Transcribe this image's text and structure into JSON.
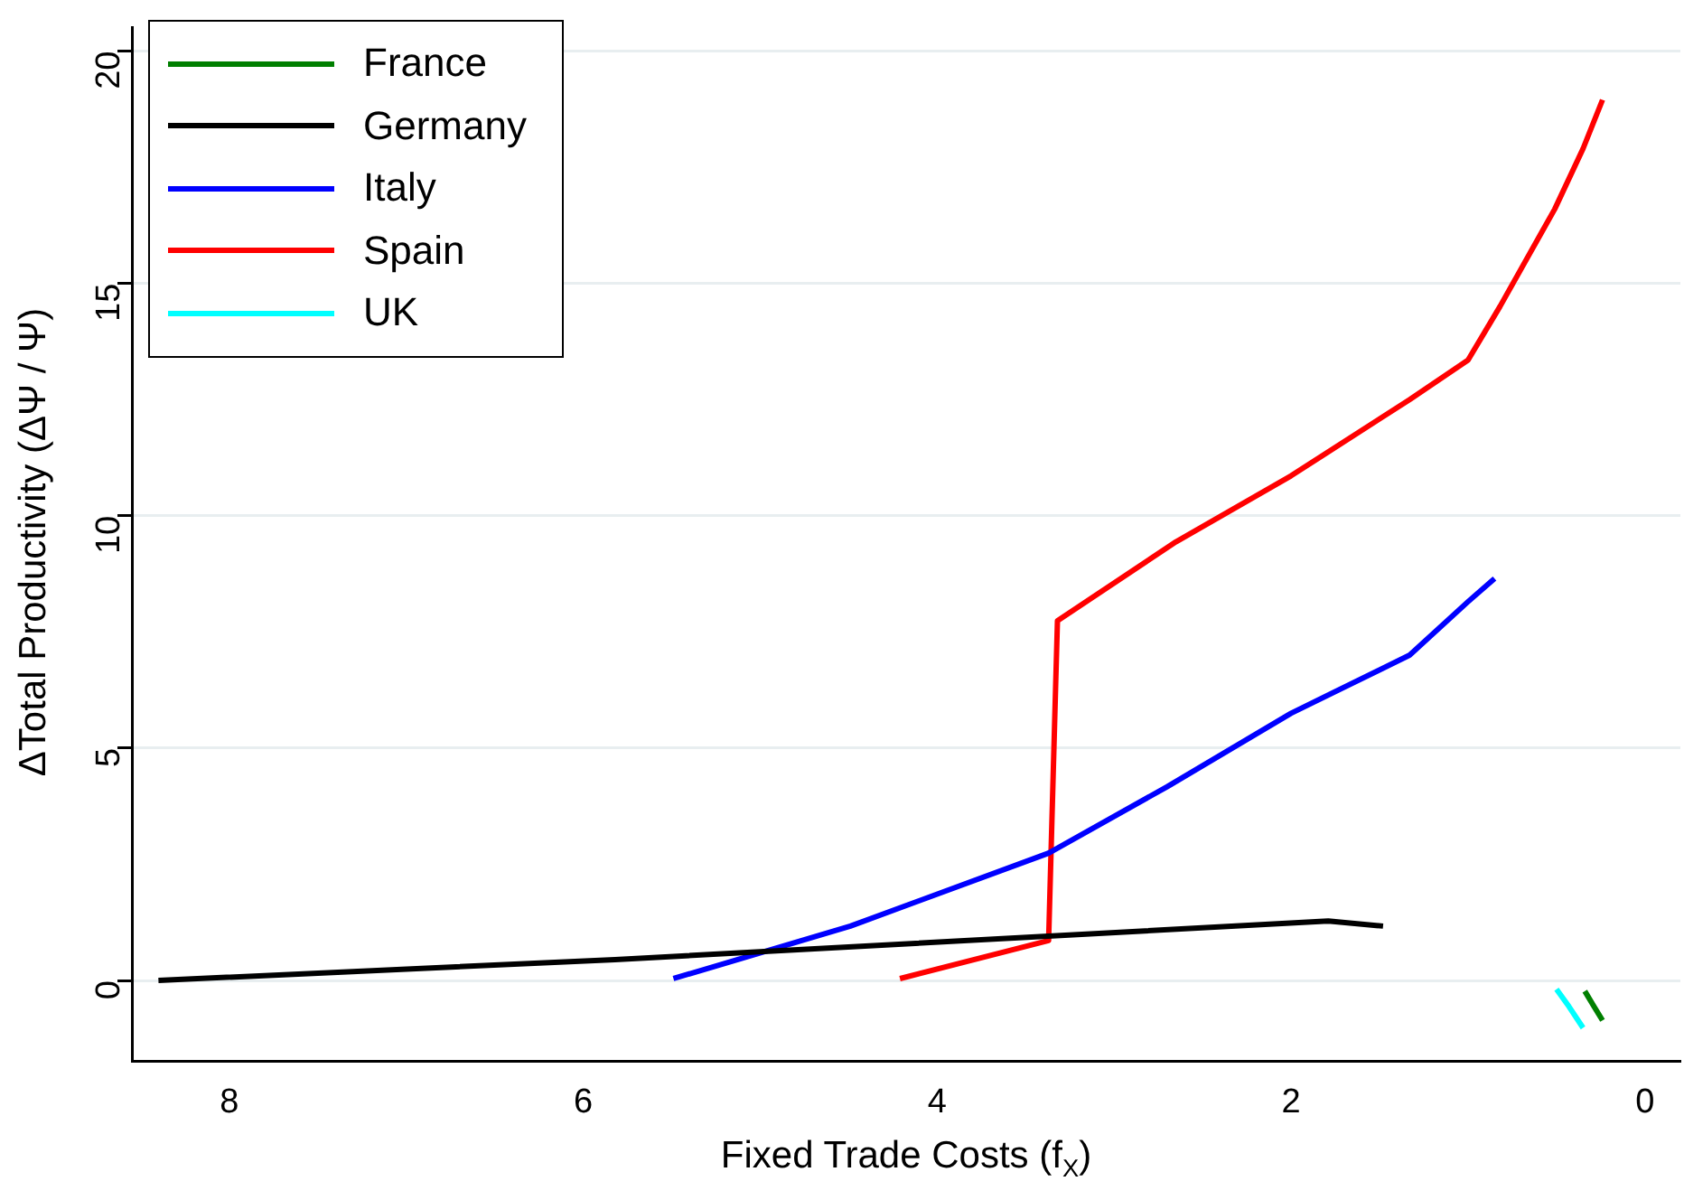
{
  "chart_data": {
    "type": "line",
    "xlabel": "Fixed Trade Costs (f$_{X}$)",
    "ylabel": "ΔTotal Productivity (ΔΨ / Ψ)",
    "xlim": [
      8.55,
      -0.2
    ],
    "xticks": [
      8,
      6,
      4,
      2,
      0
    ],
    "ylim": [
      -1.73,
      20.5
    ],
    "yticks": [
      0,
      5,
      10,
      15,
      20
    ],
    "grid": "y",
    "legend": "top left",
    "line_style": "solid",
    "marker": "none",
    "series": [
      {
        "name": "France",
        "color": "#007f00",
        "x": [
          0.34,
          0.29,
          0.24
        ],
        "values": [
          -0.23,
          -0.55,
          -0.86
        ]
      },
      {
        "name": "Germany",
        "color": "#000000",
        "x": [
          8.4,
          5.82,
          1.79,
          1.48
        ],
        "values": [
          0,
          0.45,
          1.28,
          1.17
        ]
      },
      {
        "name": "Italy",
        "color": "#0000ff",
        "x": [
          5.49,
          4.49,
          3.37,
          2.7,
          2.0,
          1.33,
          1.0,
          0.85
        ],
        "values": [
          0.04,
          1.17,
          2.74,
          4.17,
          5.75,
          7.0,
          8.15,
          8.65
        ]
      },
      {
        "name": "Spain",
        "color": "#ff0000",
        "x": [
          4.21,
          3.37,
          3.32,
          2.65,
          2.0,
          1.33,
          1.0,
          0.82,
          0.51,
          0.35,
          0.24
        ],
        "values": [
          0.04,
          0.86,
          7.74,
          9.44,
          10.86,
          12.5,
          13.35,
          14.5,
          16.6,
          17.9,
          18.95
        ]
      },
      {
        "name": "UK",
        "color": "#00ffff",
        "x": [
          0.5,
          0.43,
          0.35
        ],
        "values": [
          -0.19,
          -0.56,
          -1.02
        ]
      }
    ]
  }
}
